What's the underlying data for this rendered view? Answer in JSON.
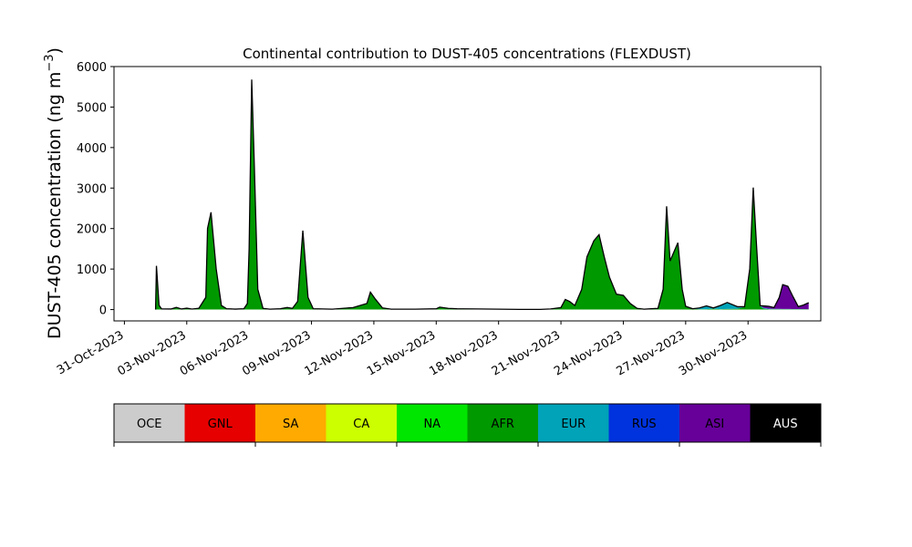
{
  "chart_data": {
    "type": "area",
    "stacked": true,
    "title": "Continental contribution to DUST-405 concentrations (FLEXDUST)",
    "ylabel": "DUST-405 concentration (ng m",
    "ylabel_unit_exponent": "−3",
    "ylabel_close": ")",
    "ylim": [
      -280,
      6000
    ],
    "yticks": [
      0,
      1000,
      2000,
      3000,
      4000,
      5000,
      6000
    ],
    "xlim": [
      "2023-10-30T12:00",
      "2023-12-03T12:00"
    ],
    "xticks": [
      {
        "date": "2023-10-31",
        "label": "31-Oct-2023"
      },
      {
        "date": "2023-11-03",
        "label": "03-Nov-2023"
      },
      {
        "date": "2023-11-06",
        "label": "06-Nov-2023"
      },
      {
        "date": "2023-11-09",
        "label": "09-Nov-2023"
      },
      {
        "date": "2023-11-12",
        "label": "12-Nov-2023"
      },
      {
        "date": "2023-11-15",
        "label": "15-Nov-2023"
      },
      {
        "date": "2023-11-18",
        "label": "18-Nov-2023"
      },
      {
        "date": "2023-11-21",
        "label": "21-Nov-2023"
      },
      {
        "date": "2023-11-24",
        "label": "24-Nov-2023"
      },
      {
        "date": "2023-11-27",
        "label": "27-Nov-2023"
      },
      {
        "date": "2023-11-30",
        "label": "30-Nov-2023"
      }
    ],
    "legend": [
      {
        "code": "OCE",
        "color": "#cccccc"
      },
      {
        "code": "GNL",
        "color": "#e60000"
      },
      {
        "code": "SA",
        "color": "#ffaa00"
      },
      {
        "code": "CA",
        "color": "#ccff00"
      },
      {
        "code": "NA",
        "color": "#00e600"
      },
      {
        "code": "AFR",
        "color": "#009900"
      },
      {
        "code": "EUR",
        "color": "#00a3b8"
      },
      {
        "code": "RUS",
        "color": "#0033dd"
      },
      {
        "code": "ASI",
        "color": "#660099"
      },
      {
        "code": "AUS",
        "color": "#000000"
      }
    ],
    "series": [
      {
        "code": "AFR",
        "color": "#009900",
        "points": [
          [
            "2023-11-01T12:00",
            0
          ],
          [
            "2023-11-01T13:00",
            1050
          ],
          [
            "2023-11-01T16:00",
            100
          ],
          [
            "2023-11-01T19:00",
            10
          ],
          [
            "2023-11-02T06:00",
            10
          ],
          [
            "2023-11-02T12:00",
            50
          ],
          [
            "2023-11-02T18:00",
            10
          ],
          [
            "2023-11-03T00:00",
            30
          ],
          [
            "2023-11-03T06:00",
            10
          ],
          [
            "2023-11-03T14:00",
            30
          ],
          [
            "2023-11-03T22:00",
            300
          ],
          [
            "2023-11-04T00:00",
            2000
          ],
          [
            "2023-11-04T04:00",
            2400
          ],
          [
            "2023-11-04T10:00",
            1000
          ],
          [
            "2023-11-04T16:00",
            100
          ],
          [
            "2023-11-04T22:00",
            20
          ],
          [
            "2023-11-05T08:00",
            10
          ],
          [
            "2023-11-05T18:00",
            20
          ],
          [
            "2023-11-05T22:00",
            150
          ],
          [
            "2023-11-06T00:00",
            1500
          ],
          [
            "2023-11-06T03:00",
            5600
          ],
          [
            "2023-11-06T06:00",
            3500
          ],
          [
            "2023-11-06T10:00",
            500
          ],
          [
            "2023-11-06T16:00",
            30
          ],
          [
            "2023-11-07T00:00",
            10
          ],
          [
            "2023-11-07T12:00",
            20
          ],
          [
            "2023-11-07T20:00",
            50
          ],
          [
            "2023-11-08T02:00",
            30
          ],
          [
            "2023-11-08T08:00",
            200
          ],
          [
            "2023-11-08T14:00",
            1950
          ],
          [
            "2023-11-08T20:00",
            300
          ],
          [
            "2023-11-09T02:00",
            20
          ],
          [
            "2023-11-10T00:00",
            10
          ],
          [
            "2023-11-10T12:00",
            30
          ],
          [
            "2023-11-11T00:00",
            50
          ],
          [
            "2023-11-11T08:00",
            100
          ],
          [
            "2023-11-11T16:00",
            150
          ],
          [
            "2023-11-11T20:00",
            430
          ],
          [
            "2023-11-12T02:00",
            250
          ],
          [
            "2023-11-12T10:00",
            40
          ],
          [
            "2023-11-12T20:00",
            10
          ],
          [
            "2023-11-14T00:00",
            10
          ],
          [
            "2023-11-15T00:00",
            20
          ],
          [
            "2023-11-15T04:00",
            60
          ],
          [
            "2023-11-15T14:00",
            30
          ],
          [
            "2023-11-16T00:00",
            20
          ],
          [
            "2023-11-17T00:00",
            15
          ],
          [
            "2023-11-18T00:00",
            10
          ],
          [
            "2023-11-19T00:00",
            5
          ],
          [
            "2023-11-20T00:00",
            5
          ],
          [
            "2023-11-20T12:00",
            15
          ],
          [
            "2023-11-21T00:00",
            50
          ],
          [
            "2023-11-21T05:00",
            250
          ],
          [
            "2023-11-21T10:00",
            200
          ],
          [
            "2023-11-21T16:00",
            100
          ],
          [
            "2023-11-22T00:00",
            500
          ],
          [
            "2023-11-22T06:00",
            1300
          ],
          [
            "2023-11-22T14:00",
            1700
          ],
          [
            "2023-11-22T20:00",
            1850
          ],
          [
            "2023-11-23T02:00",
            1300
          ],
          [
            "2023-11-23T08:00",
            800
          ],
          [
            "2023-11-23T16:00",
            380
          ],
          [
            "2023-11-24T00:00",
            350
          ],
          [
            "2023-11-24T08:00",
            150
          ],
          [
            "2023-11-24T16:00",
            30
          ],
          [
            "2023-11-25T00:00",
            10
          ],
          [
            "2023-11-25T08:00",
            20
          ],
          [
            "2023-11-25T16:00",
            30
          ],
          [
            "2023-11-25T22:00",
            500
          ],
          [
            "2023-11-26T02:00",
            2550
          ],
          [
            "2023-11-26T06:00",
            1200
          ],
          [
            "2023-11-26T12:00",
            1500
          ],
          [
            "2023-11-26T15:00",
            1650
          ],
          [
            "2023-11-26T20:00",
            500
          ],
          [
            "2023-11-27T00:00",
            80
          ],
          [
            "2023-11-27T08:00",
            20
          ],
          [
            "2023-11-27T16:00",
            10
          ],
          [
            "2023-11-28T00:00",
            10
          ],
          [
            "2023-11-28T08:00",
            20
          ],
          [
            "2023-11-28T16:00",
            10
          ],
          [
            "2023-11-29T00:00",
            15
          ],
          [
            "2023-11-29T12:00",
            20
          ],
          [
            "2023-11-29T20:00",
            60
          ],
          [
            "2023-11-30T02:00",
            1000
          ],
          [
            "2023-11-30T06:00",
            3000
          ],
          [
            "2023-11-30T10:00",
            1500
          ],
          [
            "2023-11-30T14:00",
            80
          ],
          [
            "2023-11-30T18:00",
            20
          ],
          [
            "2023-12-01T00:00",
            10
          ],
          [
            "2023-12-01T12:00",
            10
          ],
          [
            "2023-12-02T00:00",
            10
          ],
          [
            "2023-12-02T12:00",
            10
          ],
          [
            "2023-12-02T22:00",
            10
          ]
        ]
      },
      {
        "code": "EUR",
        "color": "#00a3b8",
        "points": [
          [
            "2023-11-01T12:00",
            0
          ],
          [
            "2023-11-27T08:00",
            0
          ],
          [
            "2023-11-27T16:00",
            30
          ],
          [
            "2023-11-28T00:00",
            80
          ],
          [
            "2023-11-28T08:00",
            20
          ],
          [
            "2023-11-28T16:00",
            90
          ],
          [
            "2023-11-29T00:00",
            160
          ],
          [
            "2023-11-29T12:00",
            50
          ],
          [
            "2023-11-29T20:00",
            10
          ],
          [
            "2023-11-30T02:00",
            10
          ],
          [
            "2023-11-30T18:00",
            20
          ],
          [
            "2023-12-01T00:00",
            10
          ],
          [
            "2023-12-02T22:00",
            0
          ]
        ]
      },
      {
        "code": "RUS",
        "color": "#0033dd",
        "points": [
          [
            "2023-11-01T12:00",
            0
          ],
          [
            "2023-11-01T13:00",
            30
          ],
          [
            "2023-11-01T16:00",
            5
          ],
          [
            "2023-11-06T00:00",
            0
          ],
          [
            "2023-11-06T03:00",
            80
          ],
          [
            "2023-11-06T06:00",
            60
          ],
          [
            "2023-11-06T10:00",
            0
          ],
          [
            "2023-12-02T22:00",
            0
          ]
        ]
      },
      {
        "code": "ASI",
        "color": "#660099",
        "points": [
          [
            "2023-11-01T12:00",
            0
          ],
          [
            "2023-11-30T14:00",
            0
          ],
          [
            "2023-11-30T18:00",
            50
          ],
          [
            "2023-12-01T00:00",
            60
          ],
          [
            "2023-12-01T06:00",
            30
          ],
          [
            "2023-12-01T12:00",
            280
          ],
          [
            "2023-12-01T16:00",
            600
          ],
          [
            "2023-12-01T22:00",
            560
          ],
          [
            "2023-12-02T04:00",
            300
          ],
          [
            "2023-12-02T10:00",
            60
          ],
          [
            "2023-12-02T16:00",
            100
          ],
          [
            "2023-12-02T22:00",
            160
          ]
        ]
      }
    ]
  }
}
